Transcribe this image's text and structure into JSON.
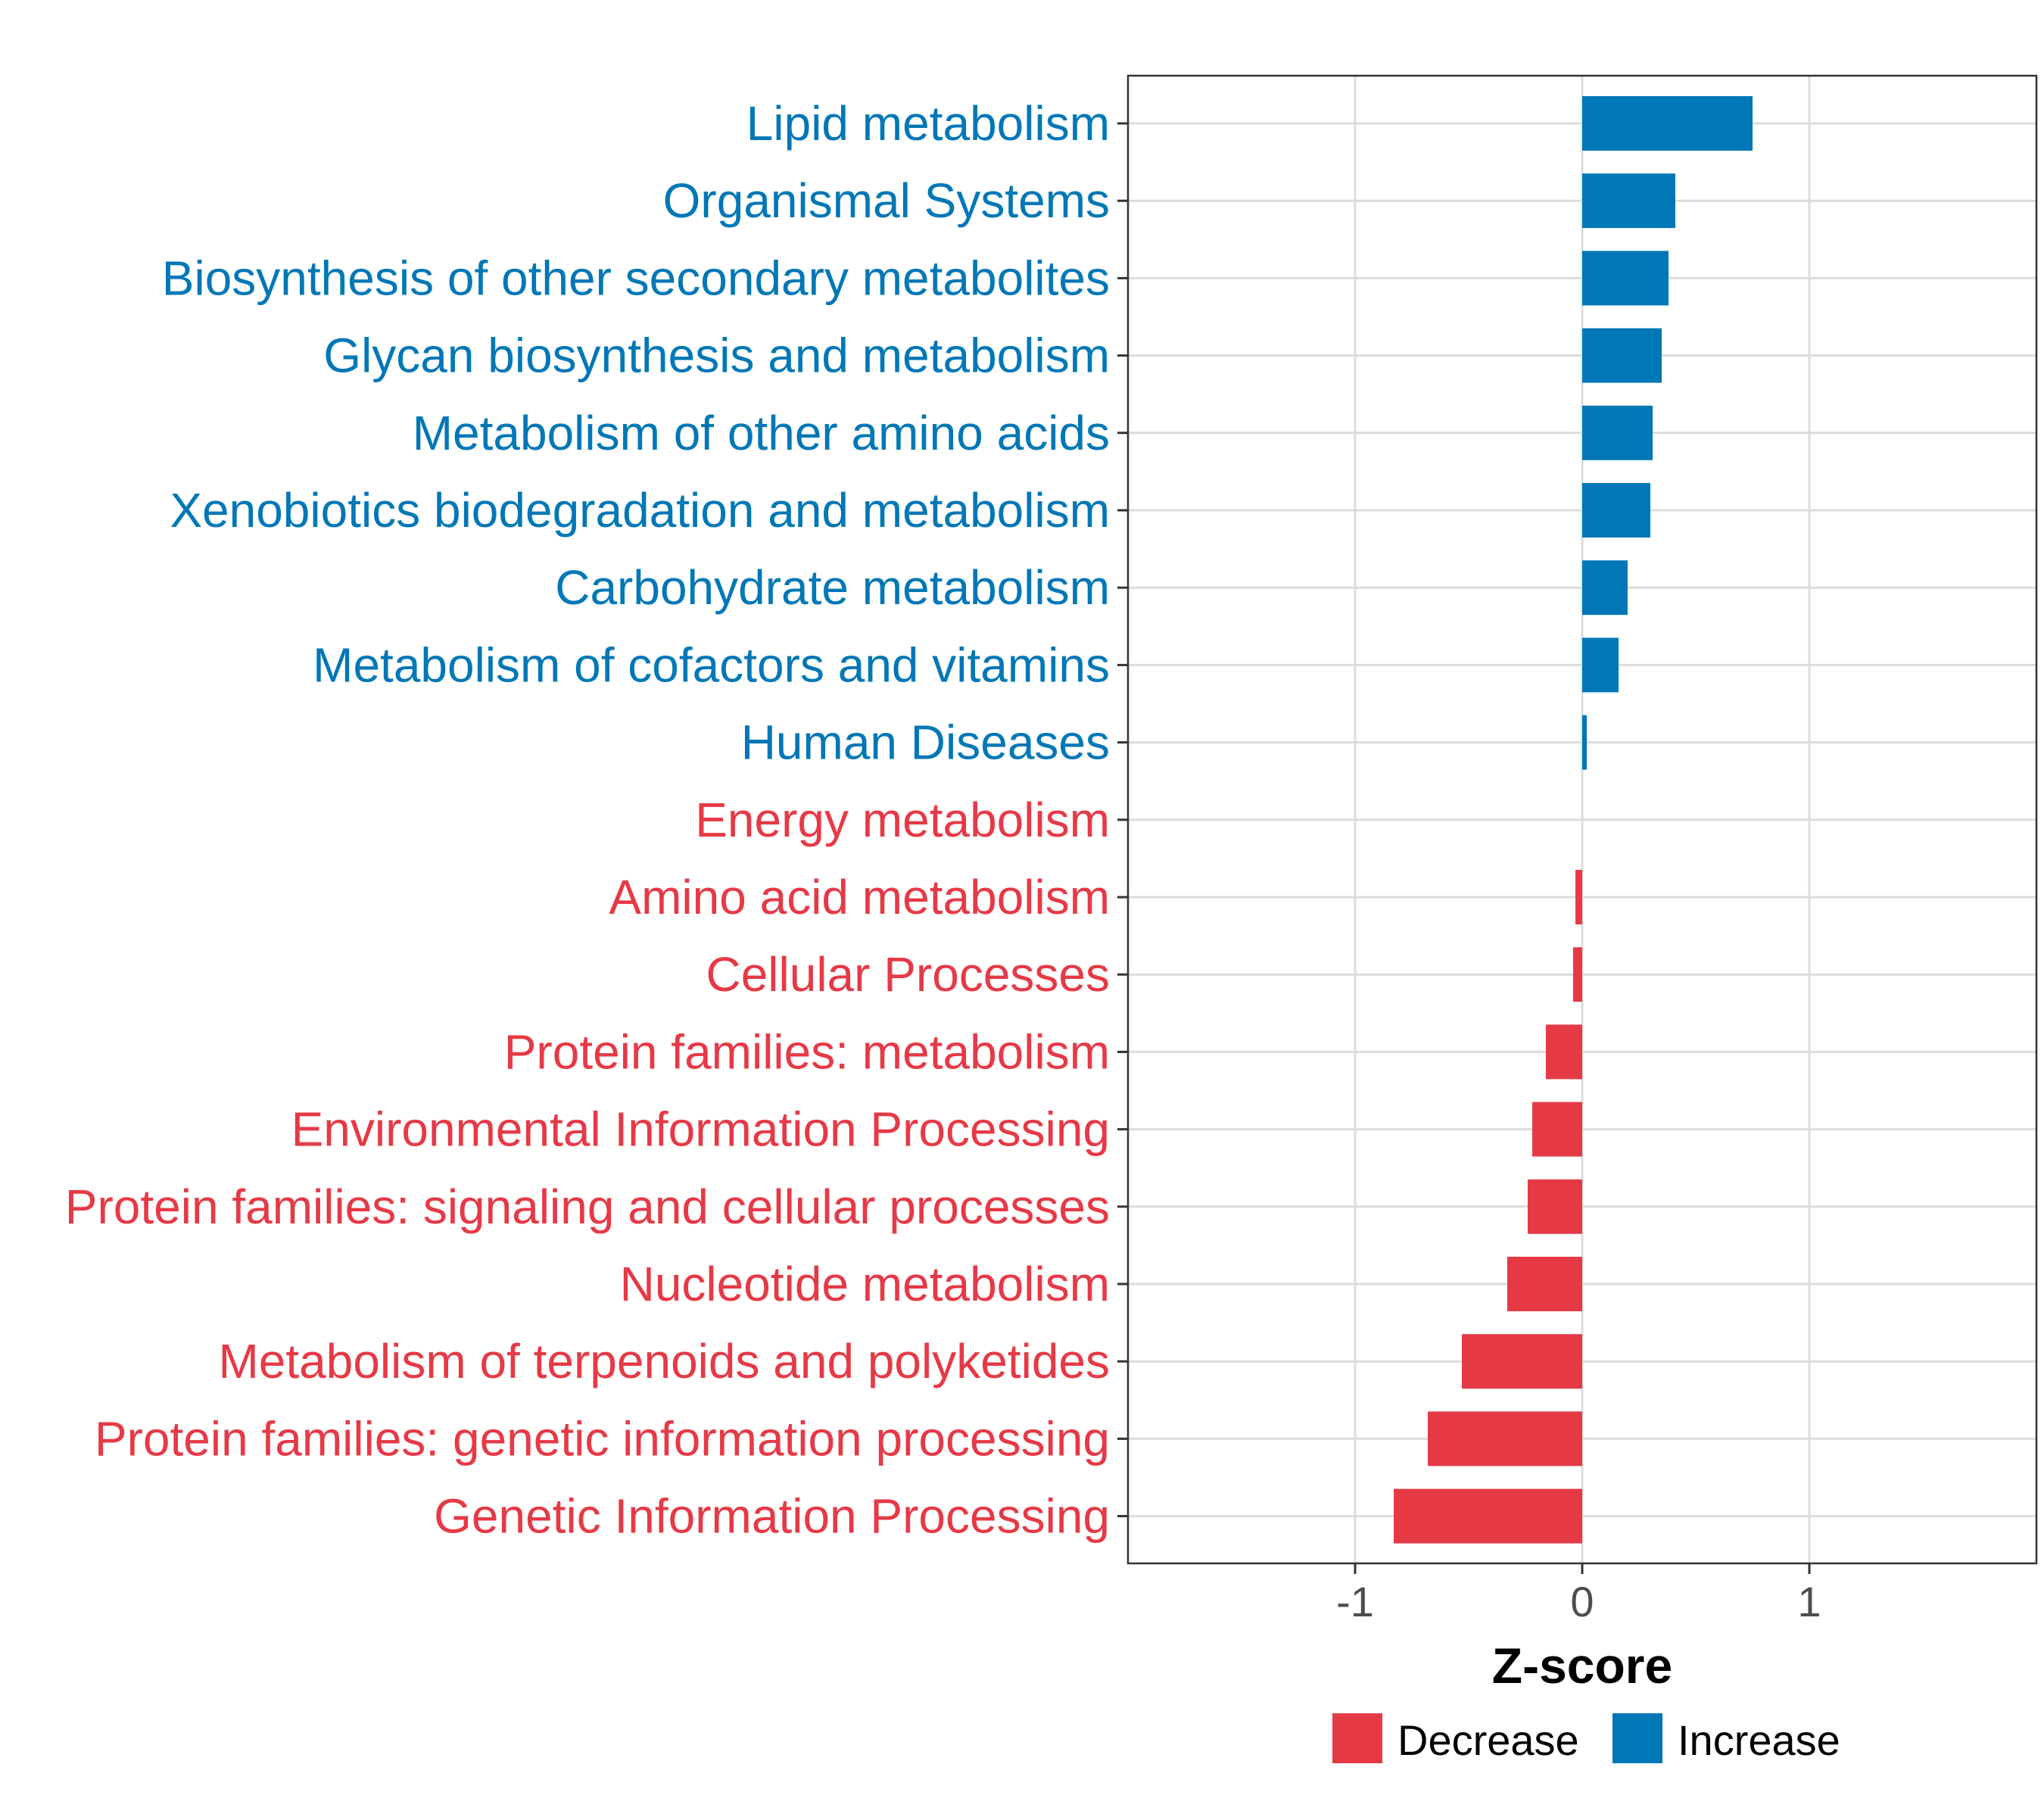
{
  "chart_data": {
    "type": "bar",
    "orientation": "horizontal",
    "title": "",
    "xlabel": "Z-score",
    "ylabel": "",
    "xlim": [
      -2,
      2
    ],
    "xticks": [
      -1,
      0,
      1
    ],
    "xtick_labels": [
      "-1",
      "0",
      "1"
    ],
    "grid": true,
    "colors": {
      "Decrease": "#E63946",
      "Increase": "#0077B6"
    },
    "categories": [
      "Lipid metabolism",
      "Organismal Systems",
      "Biosynthesis of other secondary metabolites",
      "Glycan biosynthesis and metabolism",
      "Metabolism of other amino acids",
      "Xenobiotics biodegradation and metabolism",
      "Carbohydrate metabolism",
      "Metabolism of cofactors and vitamins",
      "Human Diseases",
      "Energy metabolism",
      "Amino acid metabolism",
      "Cellular Processes",
      "Protein families: metabolism",
      "Environmental Information Processing",
      "Protein families: signaling and cellular processes",
      "Nucleotide metabolism",
      "Metabolism of terpenoids and polyketides",
      "Protein families: genetic information processing",
      "Genetic Information Processing"
    ],
    "values": [
      0.75,
      0.41,
      0.38,
      0.35,
      0.31,
      0.3,
      0.2,
      0.16,
      0.02,
      0.0,
      -0.03,
      -0.04,
      -0.16,
      -0.22,
      -0.24,
      -0.33,
      -0.53,
      -0.68,
      -0.83
    ],
    "groups": [
      "Increase",
      "Increase",
      "Increase",
      "Increase",
      "Increase",
      "Increase",
      "Increase",
      "Increase",
      "Increase",
      "Decrease",
      "Decrease",
      "Decrease",
      "Decrease",
      "Decrease",
      "Decrease",
      "Decrease",
      "Decrease",
      "Decrease",
      "Decrease"
    ],
    "legend": {
      "position": "bottom",
      "entries": [
        {
          "label": "Decrease",
          "color": "#E63946"
        },
        {
          "label": "Increase",
          "color": "#0077B6"
        }
      ]
    }
  }
}
